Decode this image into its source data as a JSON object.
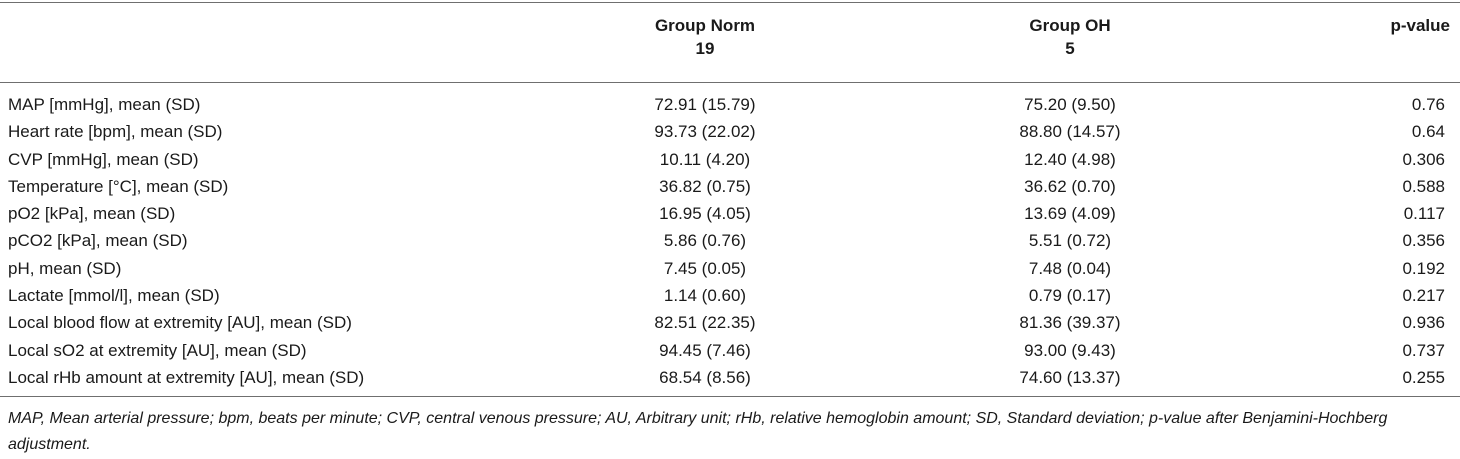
{
  "table": {
    "header": {
      "col1": "",
      "group_norm_name": "Group Norm",
      "group_norm_n": "19",
      "group_oh_name": "Group OH",
      "group_oh_n": "5",
      "pvalue": "p-value"
    },
    "rows": [
      {
        "label": "MAP [mmHg], mean (SD)",
        "norm": "72.91 (15.79)",
        "oh": "75.20 (9.50)",
        "p": "0.76"
      },
      {
        "label": "Heart rate [bpm], mean (SD)",
        "norm": "93.73 (22.02)",
        "oh": "88.80 (14.57)",
        "p": "0.64"
      },
      {
        "label": "CVP [mmHg], mean (SD)",
        "norm": "10.11 (4.20)",
        "oh": "12.40 (4.98)",
        "p": "0.306"
      },
      {
        "label": "Temperature [°C], mean (SD)",
        "norm": "36.82 (0.75)",
        "oh": "36.62 (0.70)",
        "p": "0.588"
      },
      {
        "label": "pO2 [kPa], mean (SD)",
        "norm": "16.95 (4.05)",
        "oh": "13.69 (4.09)",
        "p": "0.117"
      },
      {
        "label": "pCO2 [kPa], mean (SD)",
        "norm": "5.86 (0.76)",
        "oh": "5.51 (0.72)",
        "p": "0.356"
      },
      {
        "label": "pH, mean (SD)",
        "norm": "7.45 (0.05)",
        "oh": "7.48 (0.04)",
        "p": "0.192"
      },
      {
        "label": "Lactate [mmol/l], mean (SD)",
        "norm": "1.14 (0.60)",
        "oh": "0.79 (0.17)",
        "p": "0.217"
      },
      {
        "label": "Local blood flow at extremity [AU], mean (SD)",
        "norm": "82.51 (22.35)",
        "oh": "81.36 (39.37)",
        "p": "0.936"
      },
      {
        "label": "Local sO2 at extremity [AU], mean (SD)",
        "norm": "94.45 (7.46)",
        "oh": "93.00 (9.43)",
        "p": "0.737"
      },
      {
        "label": "Local rHb amount at extremity [AU], mean (SD)",
        "norm": "68.54 (8.56)",
        "oh": "74.60 (13.37)",
        "p": "0.255"
      }
    ],
    "footnote": "MAP, Mean arterial pressure; bpm, beats per minute; CVP, central venous pressure; AU, Arbitrary unit; rHb, relative hemoglobin amount; SD, Standard deviation; p-value after Benjamini-Hochberg adjustment."
  }
}
